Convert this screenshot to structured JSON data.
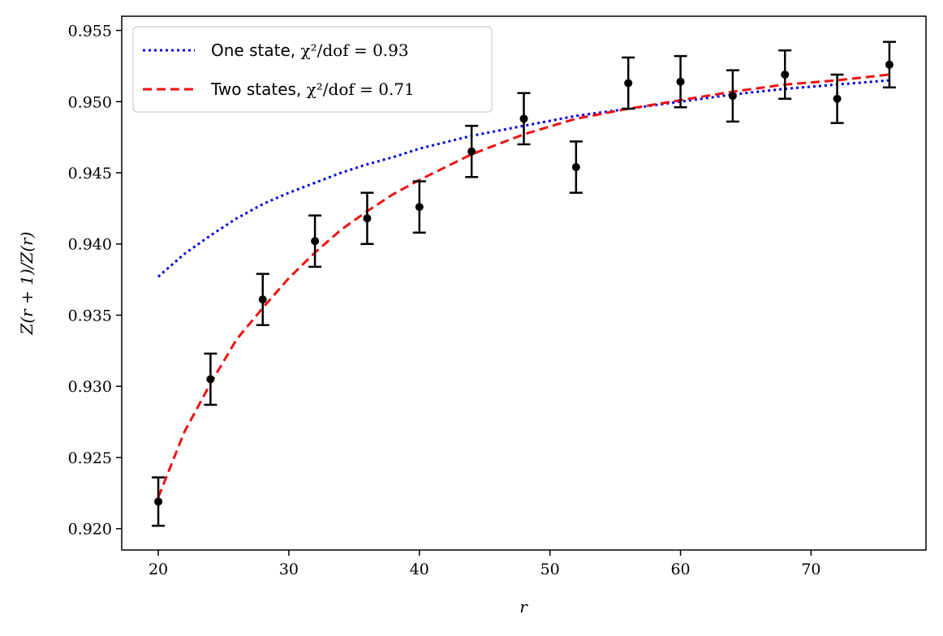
{
  "chart_data": {
    "type": "scatter",
    "title": "",
    "xlabel": "r",
    "ylabel": "Z(r + 1)/Z(r)",
    "xlim": [
      17.2,
      78.8
    ],
    "ylim": [
      0.9185,
      0.956
    ],
    "xticks": [
      20,
      30,
      40,
      50,
      60,
      70
    ],
    "yticks": [
      0.92,
      0.925,
      0.93,
      0.935,
      0.94,
      0.945,
      0.95,
      0.955
    ],
    "xtick_labels": [
      "20",
      "30",
      "40",
      "50",
      "60",
      "70"
    ],
    "ytick_labels": [
      "0.920",
      "0.925",
      "0.930",
      "0.935",
      "0.940",
      "0.945",
      "0.950",
      "0.955"
    ],
    "grid": false,
    "legend_position": "top-left",
    "data_points": {
      "name": "data",
      "color": "#000000",
      "x": [
        20,
        24,
        28,
        32,
        36,
        40,
        44,
        48,
        52,
        56,
        60,
        64,
        68,
        72,
        76
      ],
      "y": [
        0.9219,
        0.9305,
        0.9361,
        0.9402,
        0.9418,
        0.9426,
        0.9465,
        0.9488,
        0.9454,
        0.9513,
        0.9514,
        0.9504,
        0.9519,
        0.9502,
        0.9526
      ],
      "yerr": [
        0.0017,
        0.0018,
        0.0018,
        0.0018,
        0.0018,
        0.0018,
        0.0018,
        0.0018,
        0.0018,
        0.0018,
        0.0018,
        0.0018,
        0.0017,
        0.0017,
        0.0016
      ]
    },
    "series": [
      {
        "name": "One state",
        "legend_label": "One state, ",
        "legend_stat": "χ²/dof = 0.93",
        "style": "dotted",
        "color": "#0000dd",
        "x": [
          20,
          22,
          24,
          26,
          28,
          30,
          32,
          34,
          36,
          38,
          40,
          44,
          48,
          52,
          56,
          60,
          64,
          68,
          72,
          76
        ],
        "y": [
          0.9377,
          0.9393,
          0.9406,
          0.9418,
          0.9428,
          0.9436,
          0.9443,
          0.945,
          0.9456,
          0.9461,
          0.9467,
          0.9476,
          0.9483,
          0.949,
          0.9495,
          0.95,
          0.9505,
          0.9509,
          0.9512,
          0.9515
        ]
      },
      {
        "name": "Two states",
        "legend_label": "Two states, ",
        "legend_stat": "χ²/dof = 0.71",
        "style": "dashed",
        "color": "#ee1111",
        "x": [
          20,
          22,
          24,
          26,
          28,
          30,
          32,
          34,
          36,
          38,
          40,
          44,
          48,
          52,
          56,
          60,
          64,
          68,
          72,
          76
        ],
        "y": [
          0.9222,
          0.9268,
          0.9302,
          0.9333,
          0.9355,
          0.9376,
          0.9394,
          0.941,
          0.9423,
          0.9435,
          0.9445,
          0.9463,
          0.9477,
          0.9488,
          0.9495,
          0.9501,
          0.9507,
          0.9512,
          0.9515,
          0.9519
        ]
      }
    ]
  }
}
